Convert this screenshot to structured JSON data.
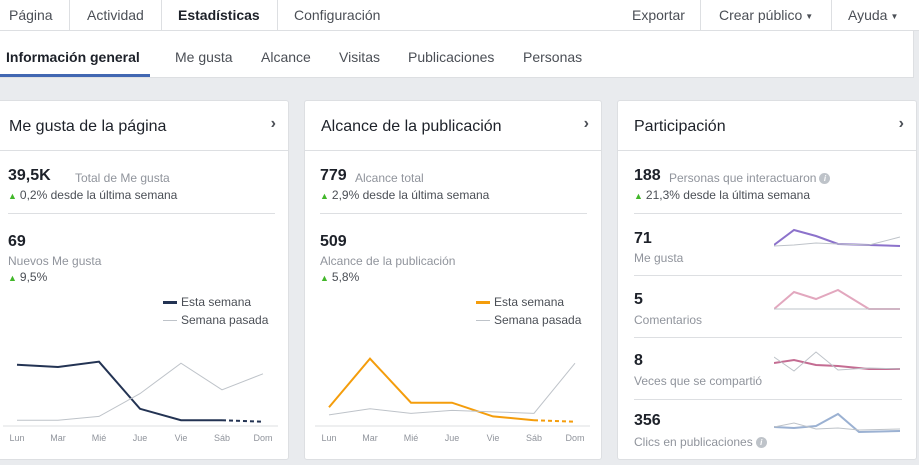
{
  "top_nav": {
    "items": [
      "Página",
      "Actividad",
      "Estadísticas",
      "Configuración"
    ],
    "right": [
      "Exportar",
      "Crear público",
      "Ayuda"
    ]
  },
  "sub_nav": {
    "tabs": [
      "Información general",
      "Me gusta",
      "Alcance",
      "Visitas",
      "Publicaciones",
      "Personas"
    ]
  },
  "colors": {
    "accent": "#4267b2",
    "up": "#42b72a",
    "likes": "#233353",
    "reach": "#f49d0c",
    "gray": "#bec3c9"
  },
  "likes_card": {
    "title": "Me gusta de la página",
    "total_value": "39,5K",
    "total_label": "Total de Me gusta",
    "total_delta": "0,2% desde la última semana",
    "new_value": "69",
    "new_label": "Nuevos Me gusta",
    "new_delta": "9,5%",
    "legend_current": "Esta semana",
    "legend_previous": "Semana pasada"
  },
  "reach_card": {
    "title": "Alcance de la publicación",
    "total_value": "779",
    "total_label": "Alcance total",
    "total_delta": "2,9% desde la última semana",
    "post_value": "509",
    "post_label": "Alcance de la publicación",
    "post_delta": "5,8%",
    "legend_current": "Esta semana",
    "legend_previous": "Semana pasada"
  },
  "engagement_card": {
    "title": "Participación",
    "total_value": "188",
    "total_label": "Personas que interactuaron",
    "total_delta": "21,3% desde la última semana",
    "rows": [
      {
        "value": "71",
        "label": "Me gusta"
      },
      {
        "value": "5",
        "label": "Comentarios"
      },
      {
        "value": "8",
        "label": "Veces que se compartió"
      },
      {
        "value": "356",
        "label": "Clics en publicaciones"
      }
    ]
  },
  "chart_data": [
    {
      "type": "line",
      "categories": [
        "Lun",
        "Mar",
        "Mié",
        "Jue",
        "Vie",
        "Sáb",
        "Dom"
      ],
      "ylim": [
        0,
        100
      ],
      "series": [
        {
          "name": "Esta semana",
          "values": [
            78,
            75,
            82,
            20,
            5,
            5,
            3
          ]
        },
        {
          "name": "Semana pasada",
          "values": [
            5,
            5,
            10,
            40,
            80,
            45,
            66
          ]
        }
      ]
    },
    {
      "type": "line",
      "categories": [
        "Lun",
        "Mar",
        "Mié",
        "Jue",
        "Vie",
        "Sáb",
        "Dom"
      ],
      "ylim": [
        0,
        100
      ],
      "series": [
        {
          "name": "Esta semana",
          "values": [
            22,
            86,
            28,
            28,
            10,
            5,
            3
          ]
        },
        {
          "name": "Semana pasada",
          "values": [
            12,
            20,
            14,
            18,
            16,
            14,
            80
          ]
        }
      ]
    }
  ]
}
